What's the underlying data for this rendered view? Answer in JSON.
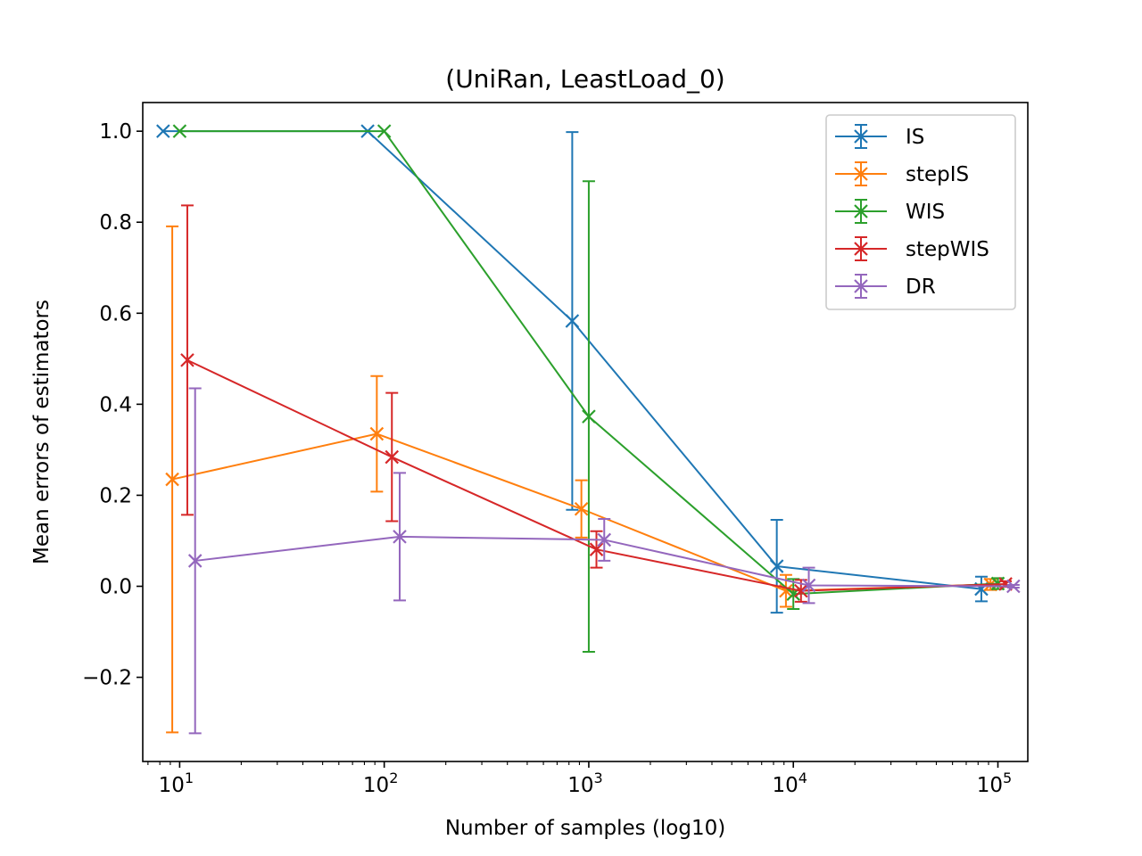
{
  "chart_data": {
    "type": "line",
    "title": "(UniRan, LeastLoad_0)",
    "xlabel": "Number of samples (log10)",
    "ylabel": "Mean errors of estimators",
    "xscale": "log",
    "xlim": [
      6.6,
      140000
    ],
    "ylim": [
      -0.385,
      1.063
    ],
    "xticks": [
      {
        "value": 10,
        "base": "10",
        "exp": "1"
      },
      {
        "value": 100,
        "base": "10",
        "exp": "2"
      },
      {
        "value": 1000,
        "base": "10",
        "exp": "3"
      },
      {
        "value": 10000,
        "base": "10",
        "exp": "4"
      },
      {
        "value": 100000,
        "base": "10",
        "exp": "5"
      }
    ],
    "yticks": [
      {
        "value": -0.2,
        "label": "−0.2"
      },
      {
        "value": 0.0,
        "label": "0.0"
      },
      {
        "value": 0.2,
        "label": "0.2"
      },
      {
        "value": 0.4,
        "label": "0.4"
      },
      {
        "value": 0.6,
        "label": "0.6"
      },
      {
        "value": 0.8,
        "label": "0.8"
      },
      {
        "value": 1.0,
        "label": "1.0"
      }
    ],
    "grid": false,
    "legend_position": "top-right",
    "series": [
      {
        "name": "IS",
        "color": "#1f77b4",
        "x": [
          8.3,
          83,
          830,
          8300,
          83000
        ],
        "y": [
          1.0,
          1.0,
          0.583,
          0.044,
          -0.006
        ],
        "err": [
          0,
          0,
          0.415,
          0.102,
          0.027
        ]
      },
      {
        "name": "stepIS",
        "color": "#ff7f0e",
        "x": [
          9.2,
          92,
          920,
          9200,
          92000
        ],
        "y": [
          0.235,
          0.335,
          0.17,
          -0.01,
          0.004
        ],
        "err": [
          0.556,
          0.127,
          0.063,
          0.035,
          0.012
        ]
      },
      {
        "name": "WIS",
        "color": "#2ca02c",
        "x": [
          10,
          100,
          1000,
          10000,
          100000
        ],
        "y": [
          1.0,
          1.0,
          0.373,
          -0.017,
          0.006
        ],
        "err": [
          0,
          0,
          0.517,
          0.033,
          0.012
        ]
      },
      {
        "name": "stepWIS",
        "color": "#d62728",
        "x": [
          10.9,
          109,
          1090,
          10900,
          109000
        ],
        "y": [
          0.497,
          0.284,
          0.081,
          -0.01,
          0.005
        ],
        "err": [
          0.34,
          0.141,
          0.04,
          0.024,
          0.006
        ]
      },
      {
        "name": "DR",
        "color": "#9467bd",
        "x": [
          11.9,
          119,
          1190,
          11900,
          119000
        ],
        "y": [
          0.056,
          0.109,
          0.102,
          0.002,
          0.0
        ],
        "err": [
          0.379,
          0.14,
          0.046,
          0.039,
          0.003
        ]
      }
    ]
  }
}
